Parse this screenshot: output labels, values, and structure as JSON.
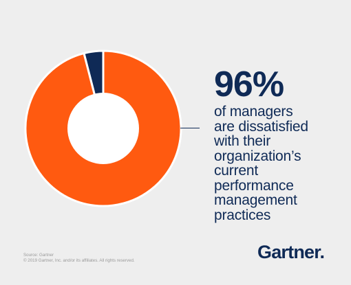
{
  "colors": {
    "background": "#eeeeee",
    "primary": "#ff5a10",
    "secondary": "#0f2a56",
    "hole": "#ffffff",
    "text": "#0f2a56",
    "source_text": "#9a9a9a"
  },
  "chart_data": {
    "type": "pie",
    "style": "donut",
    "legend": "none",
    "slices": [
      {
        "label": "dissatisfied",
        "value": 96,
        "color": "#ff5a10"
      },
      {
        "label": "",
        "value": 4,
        "color": "#0f2a56"
      }
    ]
  },
  "stat": {
    "value": "96%",
    "lines": [
      "of managers",
      "are dissatisfied",
      "with their",
      "organization’s",
      "current",
      "performance",
      "management",
      "practices"
    ]
  },
  "footer": {
    "source": "Source: Gartner",
    "copyright": "© 2019 Gartner, Inc. and/or its affiliates. All rights reserved.",
    "logo": "Gartner."
  }
}
